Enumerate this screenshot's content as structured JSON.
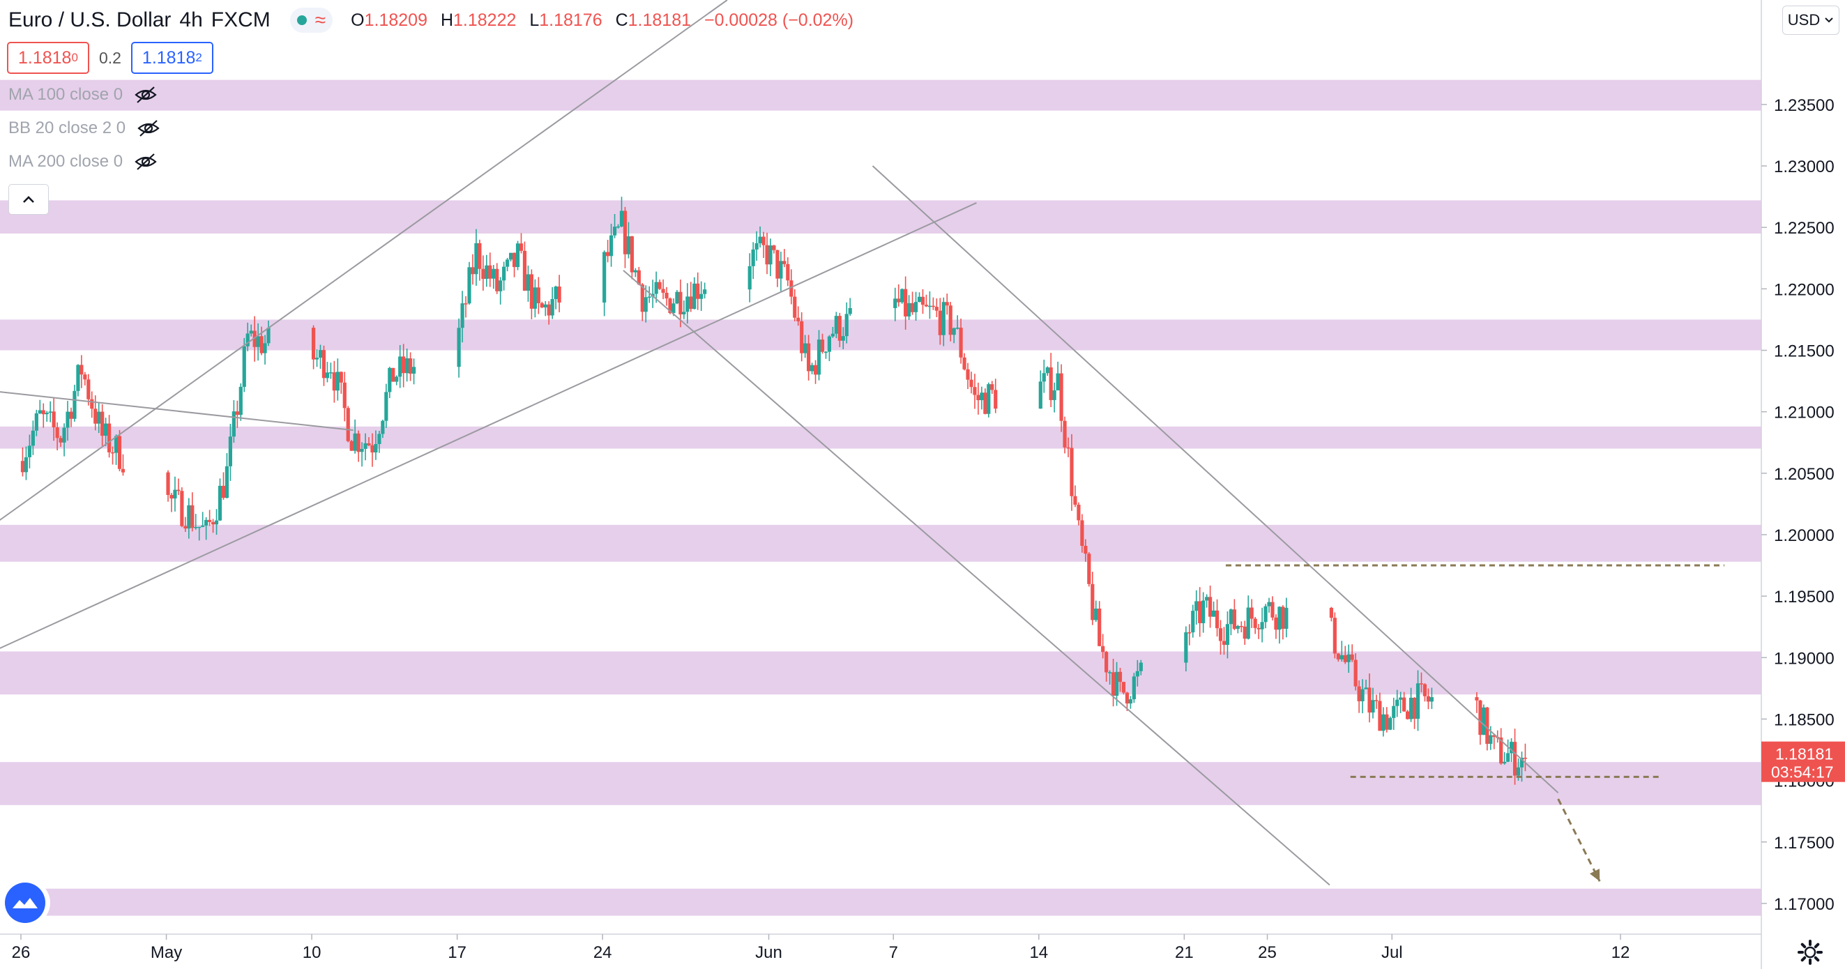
{
  "header": {
    "symbol": "Euro / U.S. Dollar",
    "interval": "4h",
    "exchange": "FXCM",
    "status_icon": "market-open-dot",
    "delay_icon": "wave-icon",
    "open_label": "O",
    "open": "1.18209",
    "high_label": "H",
    "high": "1.18222",
    "low_label": "L",
    "low": "1.18176",
    "close_label": "C",
    "close": "1.18181",
    "change": "−0.00028 (−0.02%)"
  },
  "trade": {
    "sell_main": "1.1818",
    "sell_sup": "0",
    "spread": "0.2",
    "buy_main": "1.1818",
    "buy_sup": "2"
  },
  "indicators": [
    {
      "label": "MA 100 close 0",
      "icon": "eye-off-icon"
    },
    {
      "label": "BB 20 close 2 0",
      "icon": "eye-off-icon"
    },
    {
      "label": "MA 200 close 0",
      "icon": "eye-off-icon"
    }
  ],
  "currency_button": "USD",
  "colors": {
    "up": "#26a69a",
    "down": "#ef5350",
    "zone": "#e6cfeb",
    "trendline": "#9a9aa0",
    "projection": "#8a7a55",
    "current_price_bg": "#ef5350"
  },
  "chart_data": {
    "type": "candlestick",
    "y_ticks": [
      "1.23500",
      "1.23000",
      "1.22500",
      "1.22000",
      "1.21500",
      "1.21000",
      "1.20500",
      "1.20000",
      "1.19500",
      "1.19000",
      "1.18500",
      "1.18000",
      "1.17500",
      "1.17000"
    ],
    "ylim": [
      1.1675,
      1.2435
    ],
    "x_ticks": [
      {
        "label": "26",
        "date": "2021-04-26"
      },
      {
        "label": "May",
        "date": "2021-05-03"
      },
      {
        "label": "10",
        "date": "2021-05-10"
      },
      {
        "label": "17",
        "date": "2021-05-17"
      },
      {
        "label": "24",
        "date": "2021-05-24"
      },
      {
        "label": "Jun",
        "date": "2021-06-01"
      },
      {
        "label": "7",
        "date": "2021-06-07"
      },
      {
        "label": "14",
        "date": "2021-06-14"
      },
      {
        "label": "21",
        "date": "2021-06-21"
      },
      {
        "label": "25",
        "date": "2021-06-25"
      },
      {
        "label": "Jul",
        "date": "2021-07-01"
      },
      {
        "label": "12",
        "date": "2021-07-12"
      }
    ],
    "current_price": "1.18181",
    "countdown": "03:54:17",
    "price_path": [
      [
        "2021-04-26",
        1.206
      ],
      [
        "2021-04-27",
        1.2095
      ],
      [
        "2021-04-28",
        1.208
      ],
      [
        "2021-04-29",
        1.2135
      ],
      [
        "2021-04-30",
        1.208
      ],
      [
        "2021-05-03",
        1.203
      ],
      [
        "2021-05-04",
        1.202
      ],
      [
        "2021-05-05",
        1.2
      ],
      [
        "2021-05-06",
        1.205
      ],
      [
        "2021-05-07",
        1.216
      ],
      [
        "2021-05-10",
        1.2145
      ],
      [
        "2021-05-11",
        1.214
      ],
      [
        "2021-05-12",
        1.208
      ],
      [
        "2021-05-13",
        1.2075
      ],
      [
        "2021-05-14",
        1.213
      ],
      [
        "2021-05-17",
        1.215
      ],
      [
        "2021-05-18",
        1.223
      ],
      [
        "2021-05-19",
        1.22
      ],
      [
        "2021-05-20",
        1.2225
      ],
      [
        "2021-05-21",
        1.218
      ],
      [
        "2021-05-24",
        1.2215
      ],
      [
        "2021-05-25",
        1.225
      ],
      [
        "2021-05-26",
        1.2195
      ],
      [
        "2021-05-27",
        1.219
      ],
      [
        "2021-05-28",
        1.2195
      ],
      [
        "2021-05-31",
        1.2225
      ],
      [
        "2021-06-01",
        1.223
      ],
      [
        "2021-06-02",
        1.2205
      ],
      [
        "2021-06-03",
        1.213
      ],
      [
        "2021-06-04",
        1.2165
      ],
      [
        "2021-06-07",
        1.219
      ],
      [
        "2021-06-08",
        1.218
      ],
      [
        "2021-06-09",
        1.218
      ],
      [
        "2021-06-10",
        1.217
      ],
      [
        "2021-06-11",
        1.211
      ],
      [
        "2021-06-14",
        1.212
      ],
      [
        "2021-06-15",
        1.2125
      ],
      [
        "2021-06-16",
        1.2
      ],
      [
        "2021-06-17",
        1.191
      ],
      [
        "2021-06-18",
        1.187
      ],
      [
        "2021-06-21",
        1.1915
      ],
      [
        "2021-06-22",
        1.194
      ],
      [
        "2021-06-23",
        1.1925
      ],
      [
        "2021-06-24",
        1.193
      ],
      [
        "2021-06-25",
        1.194
      ],
      [
        "2021-06-28",
        1.1925
      ],
      [
        "2021-06-29",
        1.189
      ],
      [
        "2021-06-30",
        1.186
      ],
      [
        "2021-07-01",
        1.185
      ],
      [
        "2021-07-02",
        1.1865
      ],
      [
        "2021-07-05",
        1.1865
      ],
      [
        "2021-07-06",
        1.1825
      ],
      [
        "2021-07-07",
        1.1818
      ]
    ],
    "zones": [
      [
        1.2345,
        1.237
      ],
      [
        1.2245,
        1.2272
      ],
      [
        1.215,
        1.2175
      ],
      [
        1.207,
        1.2088
      ],
      [
        1.1978,
        1.2008
      ],
      [
        1.187,
        1.1905
      ],
      [
        1.178,
        1.1815
      ],
      [
        1.169,
        1.1712
      ]
    ],
    "lines": [
      {
        "kind": "trend",
        "from": [
          "2021-04-24",
          1.2
        ],
        "to": [
          "2021-05-30",
          1.2435
        ]
      },
      {
        "kind": "trend",
        "from": [
          "2021-04-24",
          1.19
        ],
        "to": [
          "2021-06-11",
          1.227
        ]
      },
      {
        "kind": "trend",
        "from": [
          "2021-04-24",
          1.2118
        ],
        "to": [
          "2021-05-12",
          1.2085
        ]
      },
      {
        "kind": "trend",
        "from": [
          "2021-05-25",
          1.2215
        ],
        "to": [
          "2021-06-28",
          1.1715
        ]
      },
      {
        "kind": "trend",
        "from": [
          "2021-06-06",
          1.23
        ],
        "to": [
          "2021-07-09",
          1.179
        ]
      },
      {
        "kind": "dashed",
        "from": [
          "2021-06-23",
          1.1975
        ],
        "to": [
          "2021-07-17",
          1.1975
        ]
      },
      {
        "kind": "dashed",
        "from": [
          "2021-06-29",
          1.1803
        ],
        "to": [
          "2021-07-14",
          1.1803
        ]
      },
      {
        "kind": "arrow",
        "from": [
          "2021-07-09",
          1.1785
        ],
        "to": [
          "2021-07-11",
          1.1718
        ]
      }
    ]
  }
}
